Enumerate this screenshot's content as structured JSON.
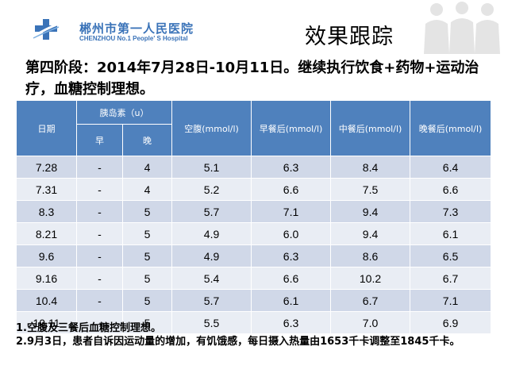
{
  "header": {
    "hospital_name_cn": "郴州市第一人民医院",
    "hospital_name_en": "CHENZHOU No.1 People' S Hospital",
    "slide_title": "效果跟踪"
  },
  "stage_text": "第四阶段：2014年7月28日-10月11日。继续执行饮食+药物+运动治疗，血糖控制理想。",
  "table": {
    "headers": {
      "date": "日期",
      "insulin": "胰岛素（u）",
      "morning": "早",
      "evening": "晚",
      "fasting": "空腹(mmol/l)",
      "after_breakfast": "早餐后(mmol/l)",
      "after_lunch": "中餐后(mmol/l)",
      "after_dinner": "晚餐后(mmol/l)"
    },
    "rows": [
      {
        "date": "7.28",
        "morning": "-",
        "evening": "4",
        "fasting": "5.1",
        "after_breakfast": "6.3",
        "after_lunch": "8.4",
        "after_dinner": "6.4"
      },
      {
        "date": "7.31",
        "morning": "-",
        "evening": "4",
        "fasting": "5.2",
        "after_breakfast": "6.6",
        "after_lunch": "7.5",
        "after_dinner": "6.6"
      },
      {
        "date": "8.3",
        "morning": "-",
        "evening": "5",
        "fasting": "5.7",
        "after_breakfast": "7.1",
        "after_lunch": "9.4",
        "after_dinner": "7.3"
      },
      {
        "date": "8.21",
        "morning": "-",
        "evening": "5",
        "fasting": "4.9",
        "after_breakfast": "6.0",
        "after_lunch": "9.4",
        "after_dinner": "6.1"
      },
      {
        "date": "9.6",
        "morning": "-",
        "evening": "5",
        "fasting": "4.9",
        "after_breakfast": "6.3",
        "after_lunch": "8.6",
        "after_dinner": "6.5"
      },
      {
        "date": "9.16",
        "morning": "-",
        "evening": "5",
        "fasting": "5.4",
        "after_breakfast": "6.6",
        "after_lunch": "10.2",
        "after_dinner": "6.7"
      },
      {
        "date": "10.4",
        "morning": "-",
        "evening": "5",
        "fasting": "5.7",
        "after_breakfast": "6.1",
        "after_lunch": "6.7",
        "after_dinner": "7.1"
      },
      {
        "date": "10.11",
        "morning": "-",
        "evening": "5",
        "fasting": "5.5",
        "after_breakfast": "6.3",
        "after_lunch": "7.0",
        "after_dinner": "6.9"
      }
    ]
  },
  "notes": [
    "1.空腹及三餐后血糖控制理想。",
    "2.9月3日，患者自诉因运动量的增加，有饥饿感，每日摄入热量由1653千卡调整至1845千卡。"
  ],
  "colors": {
    "header_blue": "#4f81bd",
    "row_odd": "#d0d8e8",
    "row_even": "#e9edf4",
    "logo_blue": "#3a73b8"
  },
  "icons": [
    "hospital-logo-icon",
    "people-silhouette-icon"
  ]
}
